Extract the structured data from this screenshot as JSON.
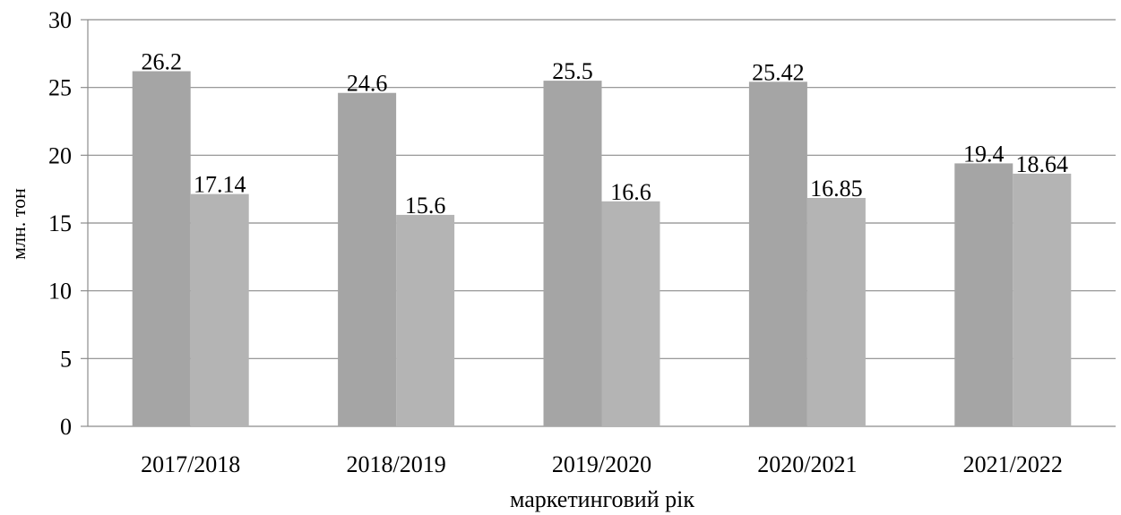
{
  "chart_data": {
    "type": "bar",
    "x_label": "маркетинговий рік",
    "y_label": "млн. тон",
    "categories": [
      "2017/2018",
      "2018/2019",
      "2019/2020",
      "2020/2021",
      "2021/2022"
    ],
    "series": [
      {
        "color": "#a5a5a5",
        "values": [
          26.2,
          24.6,
          25.5,
          25.42,
          19.4
        ]
      },
      {
        "color": "#b4b4b4",
        "values": [
          17.14,
          15.6,
          16.6,
          16.85,
          18.64
        ]
      }
    ],
    "ylim": [
      0,
      30
    ],
    "yticks": [
      0,
      5,
      10,
      15,
      20,
      25,
      30
    ],
    "grid": true
  }
}
